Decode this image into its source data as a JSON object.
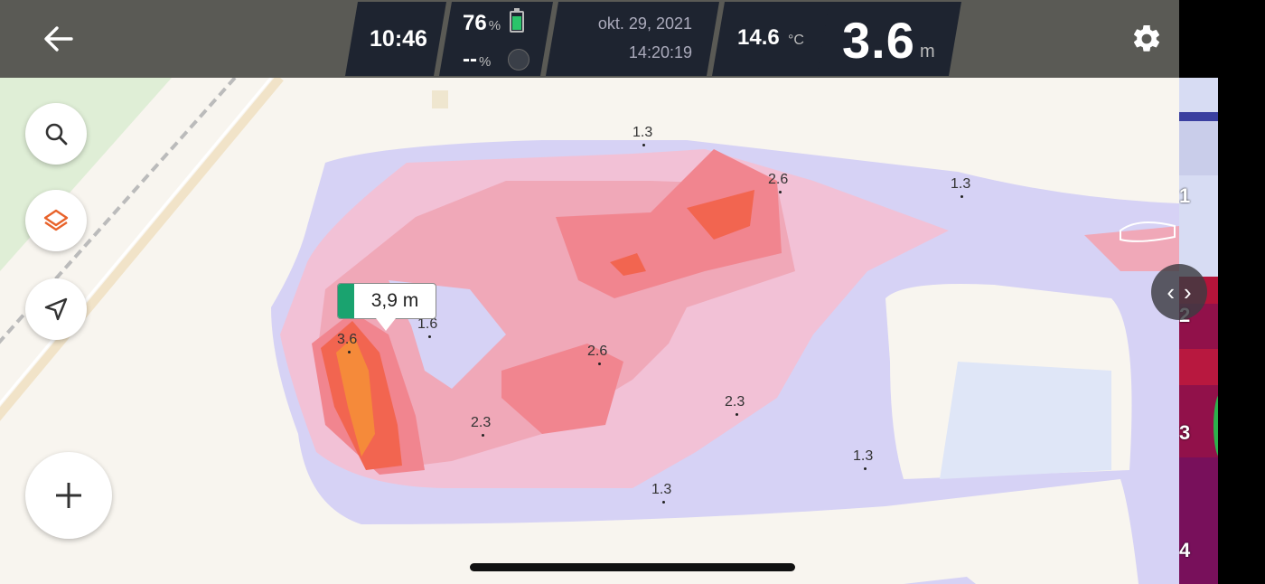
{
  "status": {
    "time": "10:46",
    "battery_value": "76",
    "battery_unit": "%",
    "gps_value": "--",
    "gps_unit": "%",
    "date": "okt. 29, 2021",
    "clock": "14:20:19",
    "temperature": "14.6",
    "temperature_unit": "°C",
    "depth": "3.6",
    "depth_unit": "m"
  },
  "popup": {
    "label": "3,9 m",
    "marker_color": "#1aa36f"
  },
  "depth_labels": [
    {
      "text": "1.3"
    },
    {
      "text": "2.6"
    },
    {
      "text": "1.3"
    },
    {
      "text": "1.6"
    },
    {
      "text": "3.6"
    },
    {
      "text": "2.6"
    },
    {
      "text": "2.3"
    },
    {
      "text": "2.3"
    },
    {
      "text": "1.3"
    },
    {
      "text": "1.3"
    }
  ],
  "sonar_scale": [
    "1",
    "2",
    "3",
    "4"
  ],
  "icons": {
    "back": "arrow-left-icon",
    "settings": "gear-icon",
    "search": "search-icon",
    "layers": "layers-icon",
    "navigate": "navigation-arrow-icon",
    "add": "plus-icon"
  },
  "colors": {
    "accent": "#e8622a",
    "battery": "#2bc46a",
    "panel_bg": "#1e2430",
    "topbar_bg": "#5a5a55"
  }
}
